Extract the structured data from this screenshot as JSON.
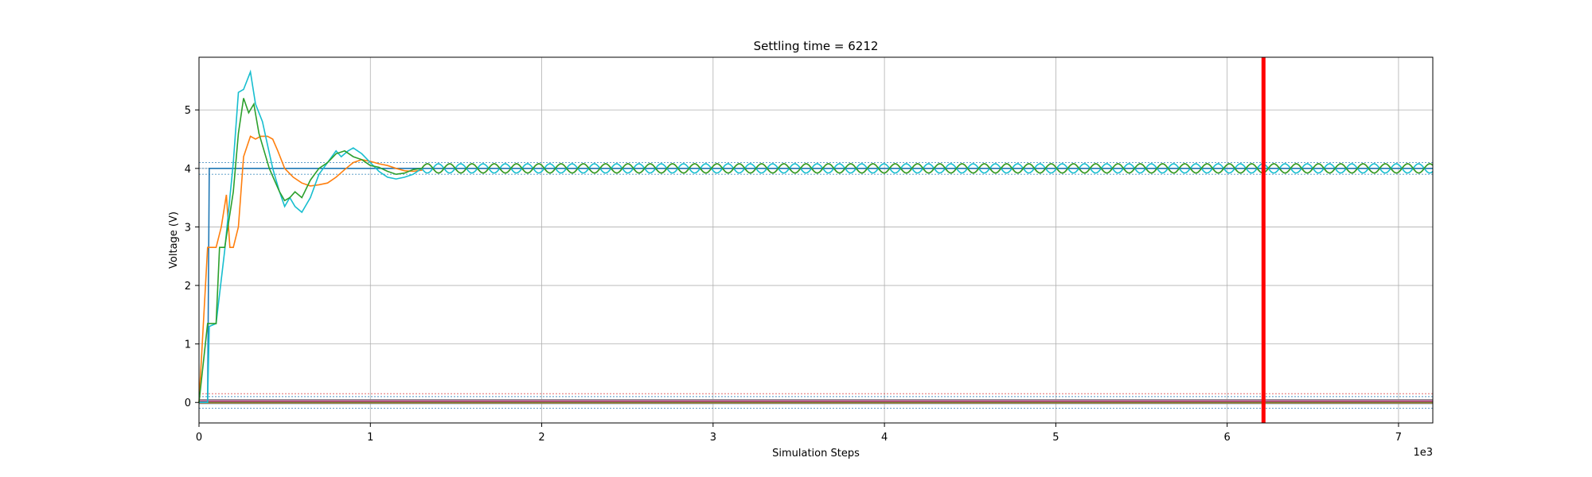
{
  "chart_data": {
    "type": "line",
    "title": "Settling time = 6212",
    "xlabel": "Simulation Steps",
    "ylabel": "Voltage (V)",
    "x_offset_label": "1e3",
    "xlim": [
      0,
      7200
    ],
    "ylim": [
      -0.35,
      5.9
    ],
    "x_ticks": [
      0,
      1000,
      2000,
      3000,
      4000,
      5000,
      6000,
      7000
    ],
    "x_tick_labels": [
      "0",
      "1",
      "2",
      "3",
      "4",
      "5",
      "6",
      "7"
    ],
    "y_ticks": [
      0,
      1,
      2,
      3,
      4,
      5
    ],
    "y_tick_labels": [
      "0",
      "1",
      "2",
      "3",
      "4",
      "5"
    ],
    "grid": true,
    "settling_time": 6212,
    "settling_color": "#ff0000",
    "reference_bands": [
      {
        "value": 4.0,
        "band": 0.1,
        "color": "#1f77b4"
      },
      {
        "value": 0.0,
        "band": 0.1,
        "color": "#1f77b4"
      },
      {
        "value": 0.15,
        "band": 0.0,
        "color": "#d62728"
      }
    ],
    "series": [
      {
        "color": "#1f77b4",
        "x": [
          0,
          50,
          60,
          7200
        ],
        "y": [
          0,
          0,
          4.0,
          4.0
        ]
      },
      {
        "color": "#ff7f0e",
        "x": [
          0,
          50,
          100,
          130,
          160,
          180,
          200,
          230,
          260,
          300,
          330,
          360,
          400,
          430,
          460,
          500,
          550,
          600,
          650,
          700,
          750,
          800,
          850,
          900,
          950,
          1000,
          1050,
          1100,
          1150,
          1200,
          1250,
          1300
        ],
        "y": [
          0,
          2.65,
          2.65,
          3.0,
          3.55,
          2.65,
          2.65,
          3.0,
          4.2,
          4.55,
          4.5,
          4.55,
          4.55,
          4.5,
          4.3,
          4.0,
          3.85,
          3.75,
          3.7,
          3.72,
          3.75,
          3.85,
          3.98,
          4.1,
          4.15,
          4.12,
          4.08,
          4.05,
          4.0,
          3.96,
          3.95,
          3.97
        ]
      },
      {
        "color": "#17becf",
        "x": [
          0,
          50,
          60,
          100,
          150,
          200,
          230,
          260,
          300,
          330,
          370,
          400,
          430,
          470,
          500,
          530,
          560,
          600,
          650,
          700,
          750,
          800,
          830,
          870,
          900,
          950,
          1000,
          1050,
          1100,
          1150,
          1200,
          1250
        ],
        "y": [
          0,
          0,
          1.3,
          1.35,
          2.6,
          4.1,
          5.3,
          5.35,
          5.65,
          5.1,
          4.8,
          4.4,
          4.0,
          3.6,
          3.35,
          3.5,
          3.35,
          3.25,
          3.5,
          3.9,
          4.1,
          4.3,
          4.2,
          4.3,
          4.35,
          4.25,
          4.1,
          3.95,
          3.85,
          3.82,
          3.85,
          3.9
        ]
      },
      {
        "color": "#2ca02c",
        "x": [
          0,
          50,
          100,
          120,
          150,
          200,
          230,
          260,
          290,
          320,
          350,
          380,
          410,
          440,
          470,
          500,
          530,
          560,
          600,
          650,
          700,
          750,
          800,
          850,
          900,
          950,
          1000,
          1050,
          1100,
          1150,
          1200,
          1250
        ],
        "y": [
          0,
          1.35,
          1.35,
          2.65,
          2.65,
          3.6,
          4.6,
          5.2,
          4.95,
          5.1,
          4.6,
          4.3,
          4.0,
          3.8,
          3.6,
          3.45,
          3.5,
          3.6,
          3.5,
          3.8,
          4.0,
          4.1,
          4.25,
          4.3,
          4.2,
          4.15,
          4.05,
          4.02,
          3.95,
          3.9,
          3.92,
          3.98
        ]
      }
    ],
    "oscillation": {
      "start": 1300,
      "end": 7200,
      "center": 4.0,
      "period": 130,
      "amplitude": 0.08
    },
    "baseline_series_colors": [
      "#1f77b4",
      "#ff7f0e",
      "#2ca02c",
      "#d62728",
      "#9467bd",
      "#8c564b",
      "#e377c2",
      "#7f7f7f"
    ]
  }
}
